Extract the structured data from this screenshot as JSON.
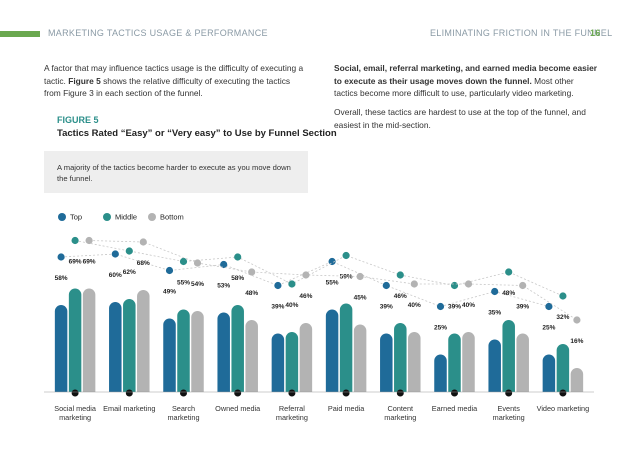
{
  "header": {
    "left": "MARKETING TACTICS USAGE & PERFORMANCE",
    "right": "ELIMINATING FRICTION IN THE FUNNEL",
    "page": "16"
  },
  "intro": [
    "A factor that may influence tactics usage is the difficulty of executing a tactic. ",
    "Figure 5",
    " shows the relative difficulty of executing the tactics from Figure 3 in each section of the funnel."
  ],
  "right_text": [
    [
      "Social, email, referral marketing, and earned media become easier to execute as their usage moves down the funnel.",
      " Most other tactics become more difficult to use, particularly video marketing."
    ],
    "Overall, these tactics are hardest to use at the top of the funnel, and easiest in the mid-section."
  ],
  "figure_label": "FIGURE 5",
  "callout": "A majority of the tactics become harder to execute as you move down the funnel.",
  "chart_data": {
    "type": "bar",
    "title": "Tactics Rated “Easy” or “Very easy” to Use by Funnel Section",
    "categories": [
      "Social media marketing",
      "Email marketing",
      "Search marketing",
      "Owned media",
      "Referral marketing",
      "Paid media",
      "Content marketing",
      "Earned media",
      "Events marketing",
      "Video marketing"
    ],
    "series": [
      {
        "name": "Top",
        "color": "#1f6b99",
        "values": [
          58,
          60,
          49,
          53,
          39,
          55,
          39,
          25,
          35,
          25
        ],
        "value_labels": [
          "58%",
          "60%",
          "49%",
          "53%",
          "39%",
          "55%",
          "39%",
          "25%",
          "35%",
          "25%"
        ]
      },
      {
        "name": "Middle",
        "color": "#2b8f8a",
        "values": [
          69,
          62,
          55,
          58,
          40,
          59,
          46,
          39,
          48,
          32
        ],
        "value_labels": [
          "69%",
          "62%",
          "55%",
          "58%",
          "40%",
          "59%",
          "46%",
          "39%",
          "48%",
          "32%"
        ]
      },
      {
        "name": "Bottom",
        "color": "#b3b3b3",
        "values": [
          69,
          68,
          54,
          48,
          46,
          45,
          40,
          40,
          39,
          16
        ],
        "value_labels": [
          "69%",
          "68%",
          "54%",
          "48%",
          "46%",
          "45%",
          "40%",
          "40%",
          "39%",
          "16%"
        ]
      }
    ],
    "legend": "top-left"
  }
}
